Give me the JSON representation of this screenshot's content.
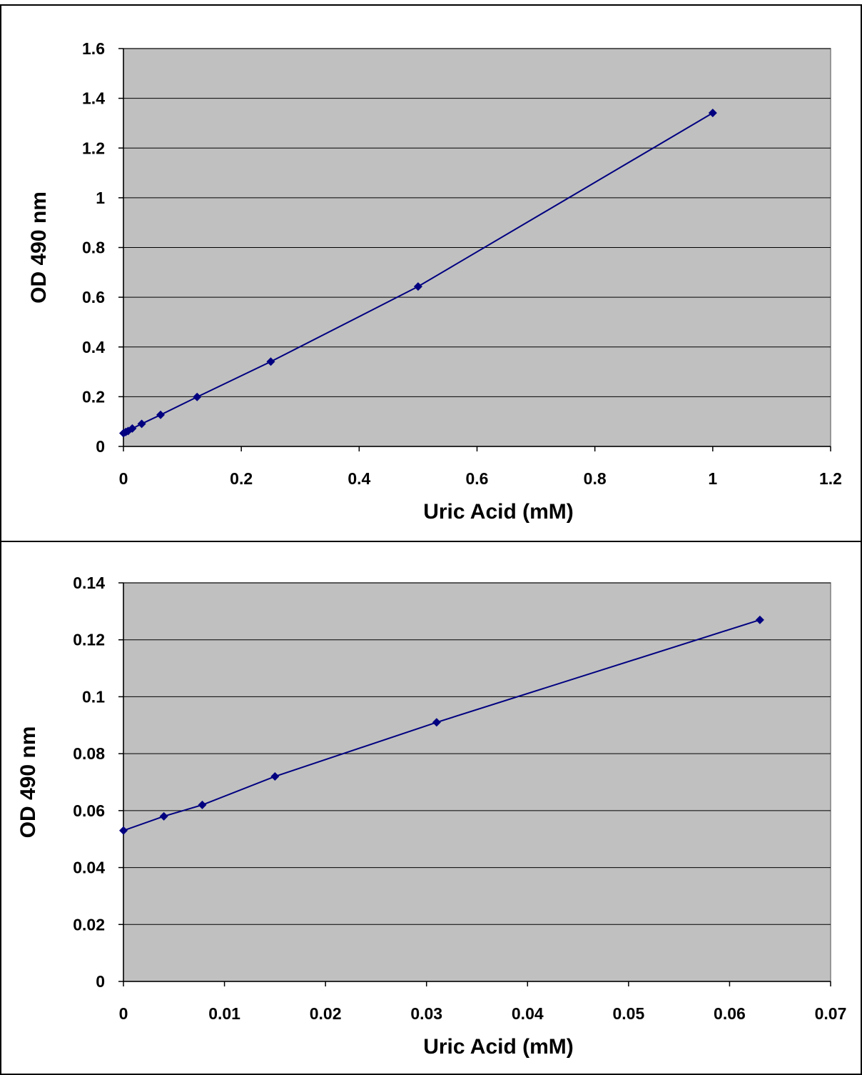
{
  "chart_data": [
    {
      "type": "scatter",
      "title": "",
      "xlabel": "Uric Acid (mM)",
      "ylabel": "OD 490 nm",
      "xlim": [
        0,
        1.2
      ],
      "ylim": [
        0,
        1.6
      ],
      "xticks": [
        "0",
        "0.2",
        "0.4",
        "0.6",
        "0.8",
        "1",
        "1.2"
      ],
      "yticks": [
        "0",
        "0.2",
        "0.4",
        "0.6",
        "0.8",
        "1",
        "1.2",
        "1.4",
        "1.6"
      ],
      "grid": "horizontal",
      "legend": "none",
      "plot_background": "#c0c0c0",
      "series_color": "#000080",
      "marker": "diamond",
      "series": [
        {
          "x": [
            0,
            0.004,
            0.008,
            0.015,
            0.031,
            0.063,
            0.125,
            0.25,
            0.5,
            1.0
          ],
          "y": [
            0.053,
            0.058,
            0.062,
            0.072,
            0.091,
            0.127,
            0.199,
            0.341,
            0.643,
            1.341
          ]
        }
      ]
    },
    {
      "type": "scatter",
      "title": "",
      "xlabel": "Uric Acid (mM)",
      "ylabel": "OD 490 nm",
      "xlim": [
        0,
        0.07
      ],
      "ylim": [
        0,
        0.14
      ],
      "xticks": [
        "0",
        "0.01",
        "0.02",
        "0.03",
        "0.04",
        "0.05",
        "0.06",
        "0.07"
      ],
      "yticks": [
        "0",
        "0.02",
        "0.04",
        "0.06",
        "0.08",
        "0.1",
        "0.12",
        "0.14"
      ],
      "grid": "horizontal",
      "legend": "none",
      "plot_background": "#c0c0c0",
      "series_color": "#000080",
      "marker": "diamond",
      "series": [
        {
          "x": [
            0,
            0.004,
            0.0078,
            0.015,
            0.031,
            0.063
          ],
          "y": [
            0.053,
            0.058,
            0.062,
            0.072,
            0.091,
            0.127
          ]
        }
      ]
    }
  ]
}
